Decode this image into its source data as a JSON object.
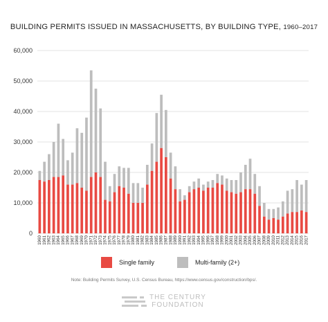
{
  "title_main": "BUILDING PERMITS ISSUED IN MASSACHUSETTS, BY BUILDING TYPE,",
  "title_years": "1960–2017",
  "colors": {
    "single": "#e84a43",
    "multi": "#bdbdbd",
    "grid": "#e3e3e3",
    "axis_text": "#333333"
  },
  "legend": {
    "single": "Single family",
    "multi": "Multi-family (2+)"
  },
  "note": "Note: Building Permits Survey, U.S. Census Bureau, https://www.census.gov/construction/bps/.",
  "logo": {
    "line1": "THE CENTURY",
    "line2": "FOUNDATION",
    "icon": "century-foundation-logo-icon"
  },
  "chart_data": {
    "type": "bar",
    "stacked": true,
    "categories": [
      "1960",
      "1961",
      "1962",
      "1963",
      "1964",
      "1965",
      "1966",
      "1967",
      "1968",
      "1969",
      "1970",
      "1971",
      "1972",
      "1973",
      "1974",
      "1975",
      "1976",
      "1977",
      "1978",
      "1979",
      "1980",
      "1981",
      "1982",
      "1983",
      "1984",
      "1985",
      "1986",
      "1987",
      "1988",
      "1989",
      "1990",
      "1991",
      "1992",
      "1993",
      "1994",
      "1995",
      "1996",
      "1997",
      "1998",
      "1999",
      "2000",
      "2001",
      "2002",
      "2003",
      "2004",
      "2005",
      "2006",
      "2007",
      "2008",
      "2009",
      "2010",
      "2011",
      "2012",
      "2013",
      "2014",
      "2015",
      "2016",
      "2017"
    ],
    "series": [
      {
        "name": "Single family",
        "values": [
          17500,
          17000,
          17500,
          18500,
          18500,
          19000,
          16000,
          16000,
          16500,
          15000,
          14000,
          18500,
          20000,
          18500,
          11000,
          10500,
          13500,
          15500,
          15000,
          13000,
          10000,
          10000,
          10000,
          16000,
          20500,
          23500,
          28000,
          25000,
          18000,
          14500,
          10500,
          11000,
          13500,
          14500,
          15000,
          14000,
          15000,
          15000,
          16500,
          16000,
          14000,
          13500,
          13000,
          13500,
          14500,
          14500,
          13000,
          9000,
          5500,
          4500,
          5000,
          4500,
          5500,
          6500,
          7000,
          7000,
          7500,
          7000
        ]
      },
      {
        "name": "Multi-family (2+)",
        "values": [
          3000,
          6500,
          8500,
          11500,
          17500,
          12000,
          8000,
          10500,
          18000,
          18000,
          24000,
          35000,
          27500,
          22500,
          12500,
          5000,
          6000,
          6500,
          6500,
          8500,
          6500,
          6500,
          5000,
          6500,
          9000,
          16000,
          17500,
          15500,
          8500,
          7500,
          4000,
          1500,
          2000,
          2500,
          3000,
          2000,
          2000,
          2500,
          3000,
          3000,
          4000,
          4000,
          4500,
          6500,
          8000,
          10000,
          6500,
          6500,
          4500,
          3500,
          3000,
          4000,
          5000,
          7500,
          7500,
          10500,
          8500,
          10500
        ]
      }
    ],
    "xlabel": "",
    "ylabel": "",
    "y_ticks": [
      "0",
      "10,000",
      "20,000",
      "30,000",
      "40,000",
      "50,000",
      "60,000"
    ],
    "ylim": [
      0,
      60000
    ],
    "grid": true,
    "legend_position": "bottom"
  }
}
